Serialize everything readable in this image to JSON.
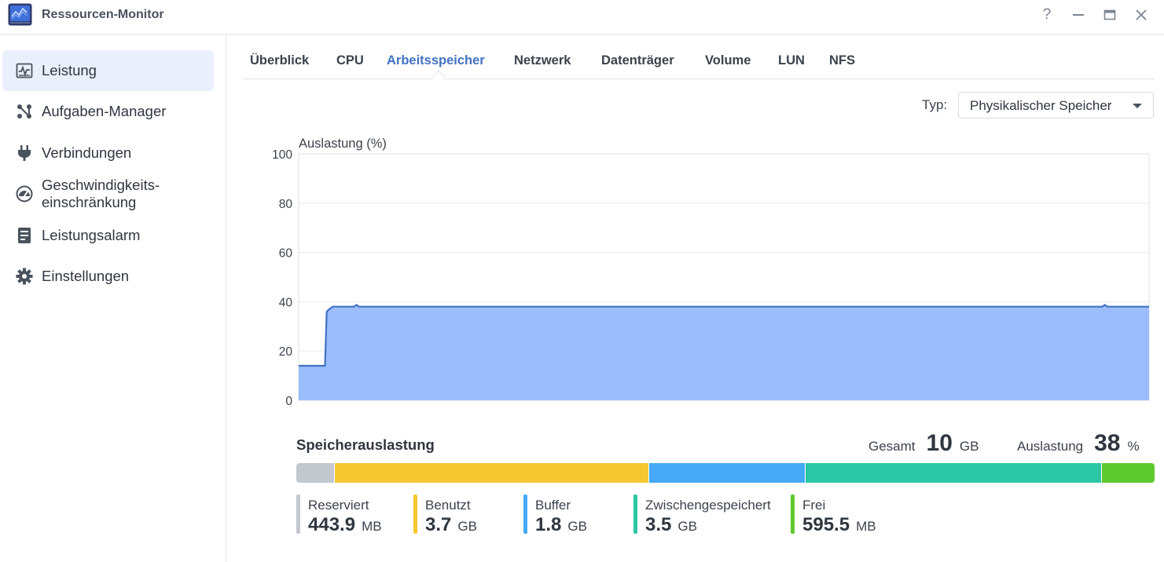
{
  "window": {
    "title": "Ressourcen-Monitor",
    "help_symbol": "?"
  },
  "sidebar": {
    "items": [
      {
        "label": "Leistung",
        "icon": "performance-chart-icon",
        "active": true
      },
      {
        "label": "Aufgaben-Manager",
        "icon": "task-manager-icon",
        "active": false
      },
      {
        "label": "Verbindungen",
        "icon": "plug-icon",
        "active": false
      },
      {
        "label": "Geschwindigkeits-",
        "label2": "einschränkung",
        "icon": "speedometer-icon",
        "active": false
      },
      {
        "label": "Leistungsalarm",
        "icon": "clipboard-icon",
        "active": false
      },
      {
        "label": "Einstellungen",
        "icon": "gear-icon",
        "active": false
      }
    ]
  },
  "tabs": [
    {
      "label": "Überblick",
      "active": false
    },
    {
      "label": "CPU",
      "active": false
    },
    {
      "label": "Arbeitsspeicher",
      "active": true
    },
    {
      "label": "Netzwerk",
      "active": false
    },
    {
      "label": "Datenträger",
      "active": false
    },
    {
      "label": "Volume",
      "active": false
    },
    {
      "label": "LUN",
      "active": false
    },
    {
      "label": "NFS",
      "active": false
    }
  ],
  "type_select": {
    "label": "Typ:",
    "value": "Physikalischer Speicher"
  },
  "chart_data": {
    "type": "area",
    "ylabel": "Auslastung (%)",
    "ylim": [
      0,
      100
    ],
    "yticks": [
      0,
      20,
      40,
      60,
      80,
      100
    ],
    "grid": true,
    "legend": "none",
    "color": "#9bbdfb",
    "line_color": "#4472c4",
    "series": [
      {
        "x": [
          0,
          3.1,
          3.3,
          3.6,
          4.0,
          6.5,
          6.8,
          7.1,
          94.5,
          94.8,
          95.1,
          100
        ],
        "values": [
          14,
          14,
          36,
          37,
          38,
          38,
          38.7,
          38,
          38,
          38.7,
          38,
          38
        ]
      }
    ]
  },
  "memory": {
    "title": "Speicherauslastung",
    "total_label": "Gesamt",
    "total_value": "10",
    "total_unit": "GB",
    "usage_label": "Auslastung",
    "usage_value": "38",
    "usage_unit": "%",
    "segments": [
      {
        "name": "Reserviert",
        "value": "443.9",
        "unit": "MB",
        "fraction": 0.0445,
        "color": "#c3c7ce"
      },
      {
        "name": "Benutzt",
        "value": "3.7",
        "unit": "GB",
        "fraction": 0.367,
        "color": "#f5c832"
      },
      {
        "name": "Buffer",
        "value": "1.8",
        "unit": "GB",
        "fraction": 0.182,
        "color": "#46a9f5"
      },
      {
        "name": "Zwischengespeichert",
        "value": "3.5",
        "unit": "GB",
        "fraction": 0.345,
        "color": "#2bc7a4"
      },
      {
        "name": "Frei",
        "value": "595.5",
        "unit": "MB",
        "fraction": 0.0615,
        "color": "#5ec92e"
      }
    ]
  }
}
